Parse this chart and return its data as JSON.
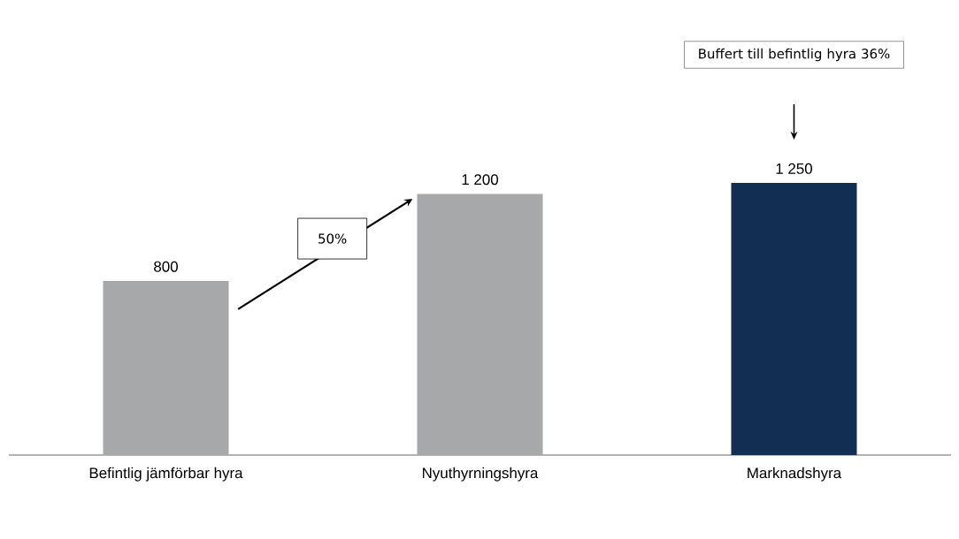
{
  "chart_data": {
    "type": "bar",
    "categories": [
      "Befintlig jämförbar hyra",
      "Nyuthyrningshyra",
      "Marknadshyra"
    ],
    "values": [
      800,
      1200,
      1250
    ],
    "value_labels": [
      "800",
      "1 200",
      "1 250"
    ],
    "colors": [
      "#a7a8aa",
      "#a7a8aa",
      "#132e53"
    ],
    "annotations": [
      "50%",
      "Buffert till befintlig hyra 36%"
    ]
  }
}
